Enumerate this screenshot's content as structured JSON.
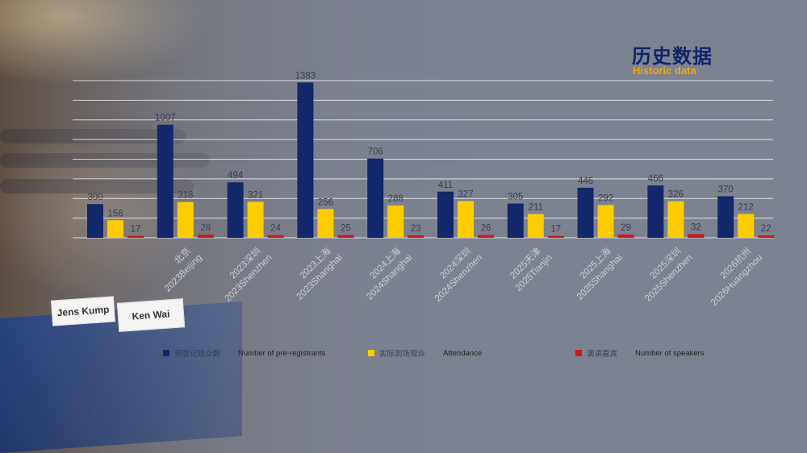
{
  "slide": {
    "title_cn": "历史数据",
    "title_en": "Historic data",
    "nameplates": [
      "Jens Kump",
      "Ken Wai"
    ]
  },
  "colors": {
    "pre_registrants": "#13286b",
    "attendance": "#ffcc00",
    "speakers": "#cc1a1a",
    "title": "#12246a",
    "subtitle": "#f3a70a"
  },
  "chart_data": {
    "type": "bar",
    "categories": [
      "2023北京 2023Beijing",
      "2023北京 2023Beijing",
      "2023深圳 2023Shenzhen",
      "2023上海 2023Shanghai",
      "2024上海 2024Shanghai",
      "2024深圳 2024Shenzhen",
      "2025天津 2025Tianjin",
      "2025上海 2025Shanghai",
      "2025深圳 2025Shenzhen",
      "2026杭州 2026Huangzhou"
    ],
    "category_lines": [
      [
        "",
        ""
      ],
      [
        "北京",
        "2023Beijing"
      ],
      [
        "2023深圳",
        "2023Shenzhen"
      ],
      [
        "2023上海",
        "2023Shanghai"
      ],
      [
        "2024上海",
        "2024Shanghai"
      ],
      [
        "2024深圳",
        "2024Shenzhen"
      ],
      [
        "2025天津",
        "2025Tianjin"
      ],
      [
        "2025上海",
        "2025Shanghai"
      ],
      [
        "2025深圳",
        "2025Shenzhen"
      ],
      [
        "2026杭州",
        "2026Huangzhou"
      ]
    ],
    "series": [
      {
        "name": "预登记观众数",
        "name_en": "Number of pre-registrants",
        "values": [
          300,
          1007,
          494,
          1383,
          706,
          411,
          305,
          446,
          466,
          370
        ]
      },
      {
        "name": "实际到场观众",
        "name_en": "Attendance",
        "values": [
          156,
          318,
          321,
          256,
          288,
          327,
          211,
          292,
          326,
          212
        ]
      },
      {
        "name": "演讲嘉宾",
        "name_en": "Number of speakers",
        "values": [
          17,
          28,
          24,
          25,
          23,
          26,
          17,
          29,
          32,
          22
        ]
      }
    ],
    "ylim": [
      0,
      1400
    ],
    "grid": true,
    "legend_position": "bottom"
  }
}
